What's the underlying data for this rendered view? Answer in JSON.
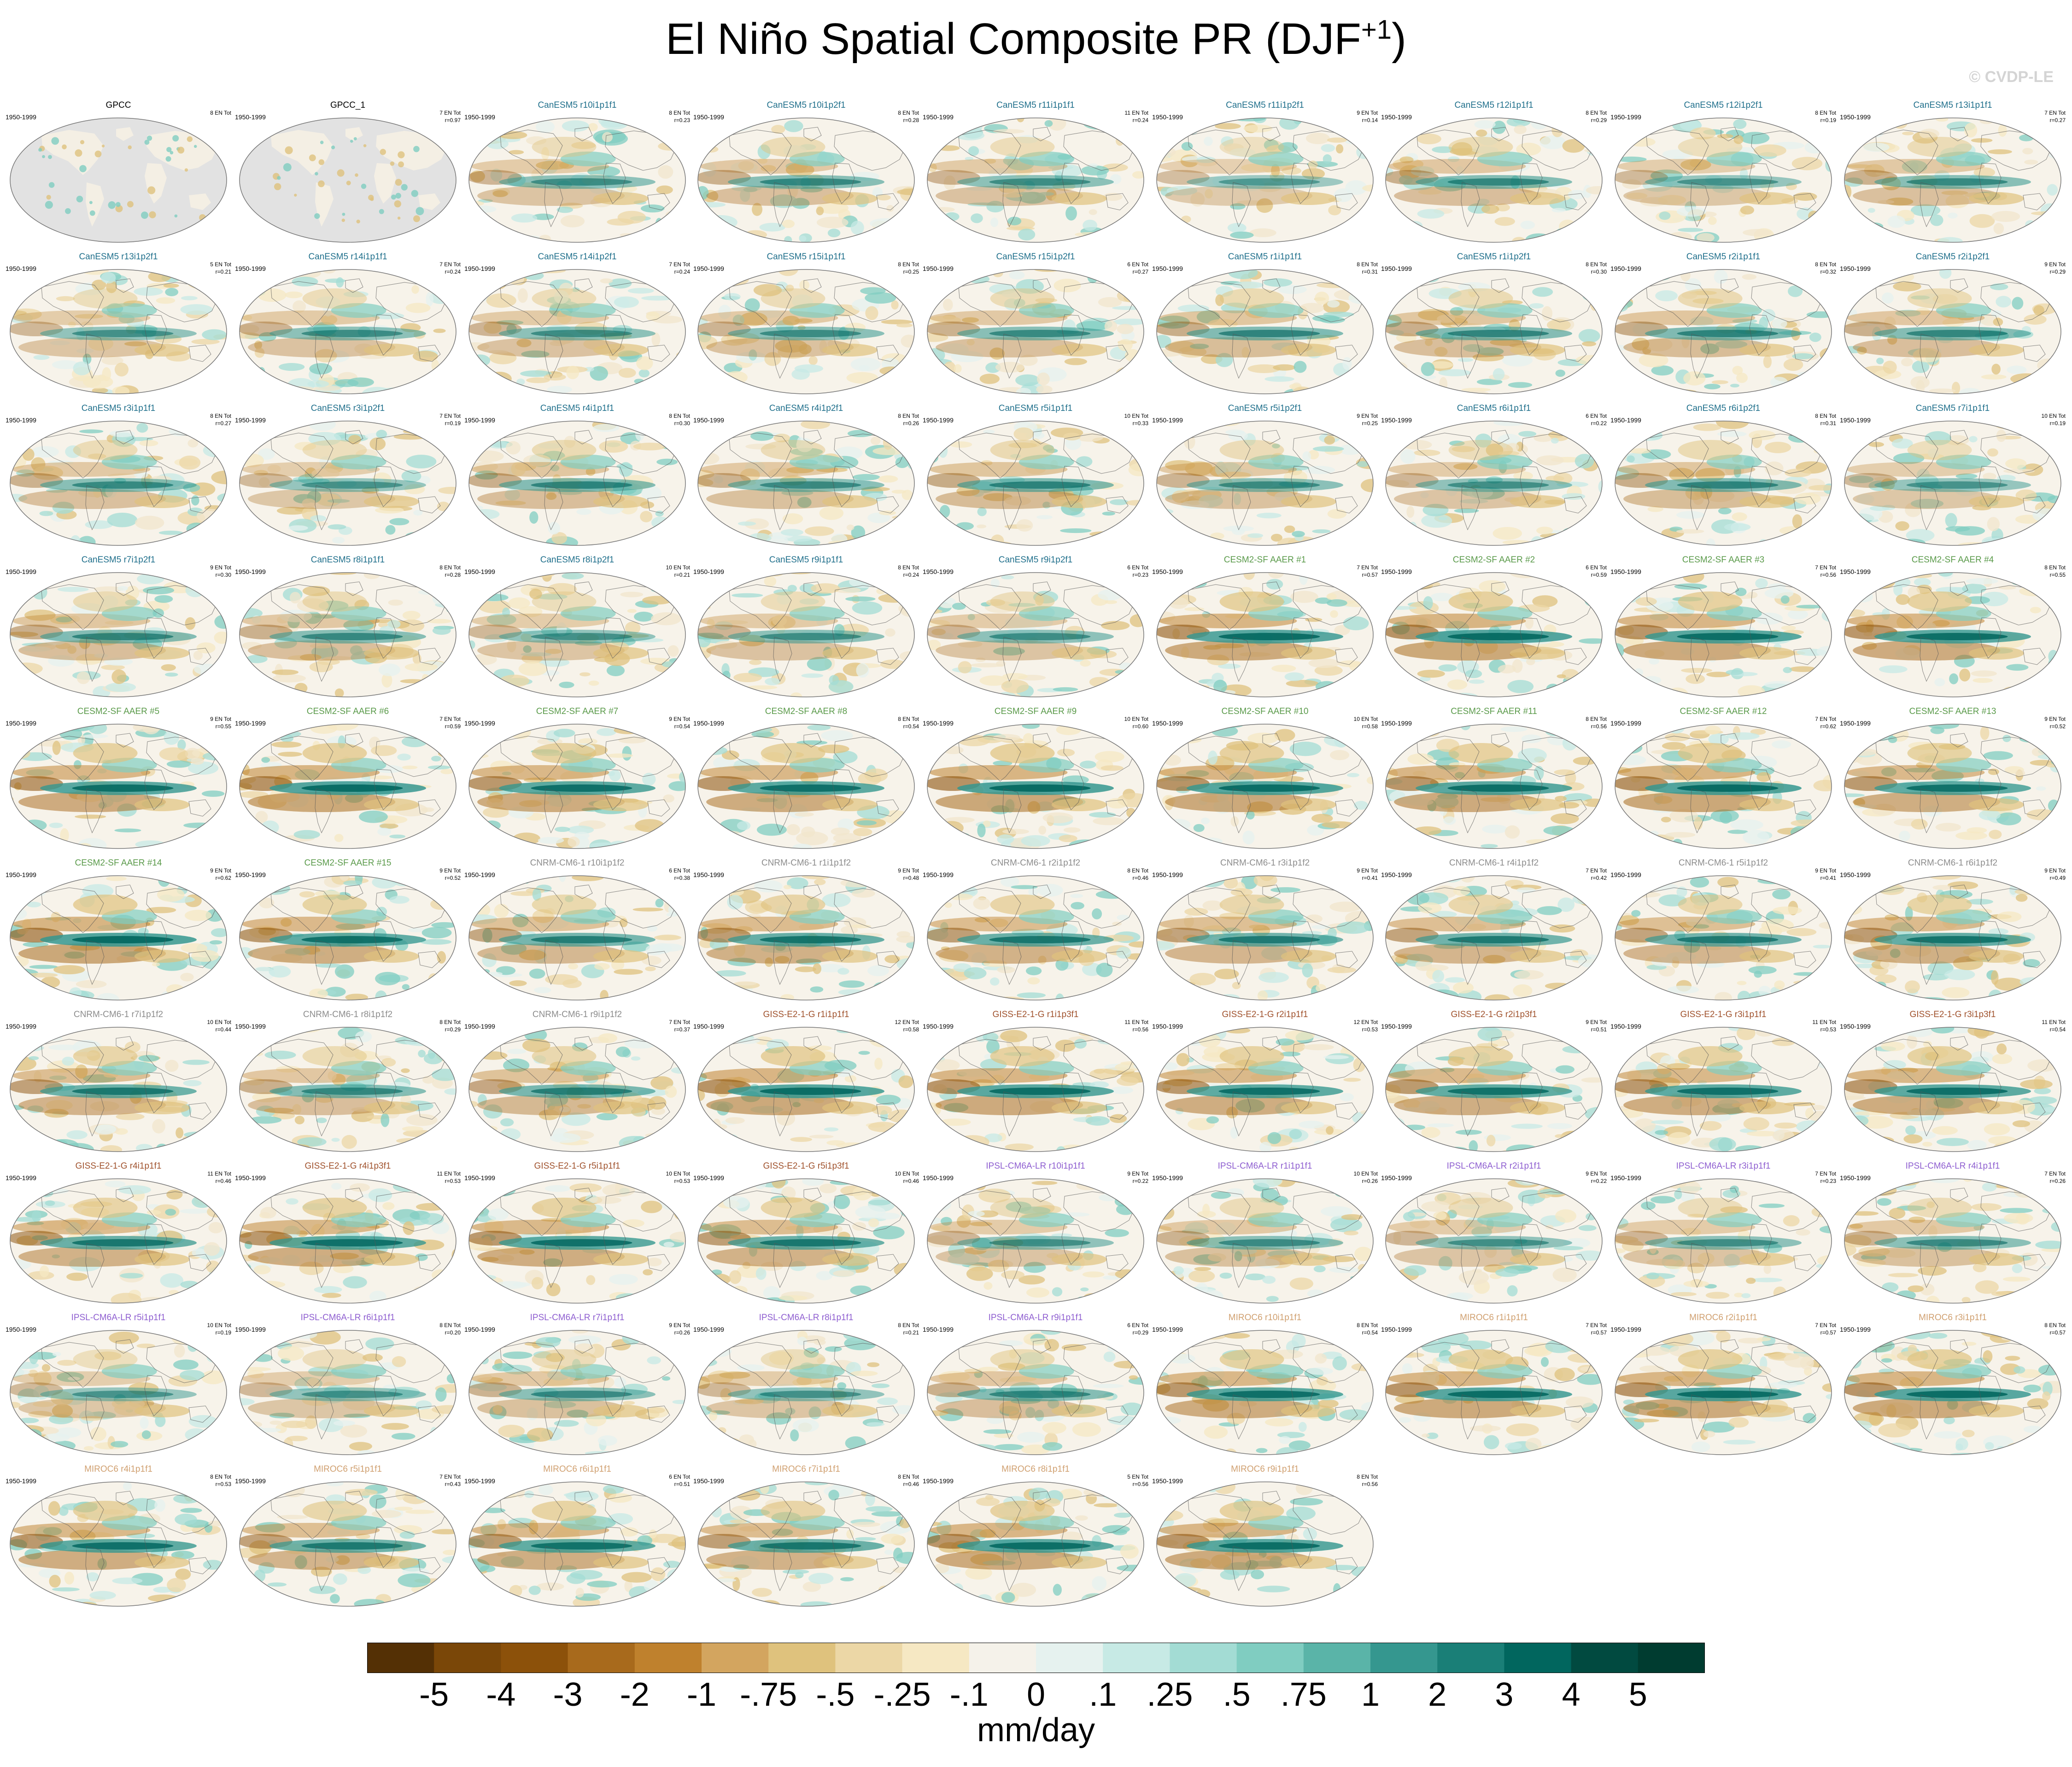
{
  "title": "El Niño Spatial Composite PR (DJF",
  "title_sup": "+1",
  "title_close": ")",
  "credit": "© CVDP-LE",
  "chart_data": {
    "type": "heatmap",
    "variable": "PR",
    "season": "DJF+1",
    "period": "1950-1999",
    "units": "mm/day",
    "colorbar": {
      "labels": [
        "-5",
        "-4",
        "-3",
        "-2",
        "-1",
        "-.75",
        "-.5",
        "-.25",
        "-.1",
        "0",
        ".1",
        ".25",
        ".5",
        ".75",
        "1",
        "2",
        "3",
        "4",
        "5"
      ],
      "colors": [
        "#543005",
        "#7a4708",
        "#8c510a",
        "#a86a1c",
        "#bf812d",
        "#d3a55f",
        "#dfc27d",
        "#ecd7a6",
        "#f6e8c3",
        "#f5f2ea",
        "#e6f2ef",
        "#c7eae5",
        "#a3dcd4",
        "#80cdc1",
        "#5ab4a8",
        "#35978f",
        "#1a7f77",
        "#01665e",
        "#014a40",
        "#003c30"
      ]
    },
    "panels": [
      {
        "name": "GPCC",
        "period": "1950-1999",
        "count": "8 EN Tot",
        "r": "",
        "group": "obs"
      },
      {
        "name": "GPCC_1",
        "period": "1950-1999",
        "count": "7 EN Tot",
        "r": "r=0.97",
        "group": "obs"
      },
      {
        "name": "CanESM5 r10i1p1f1",
        "period": "1950-1999",
        "count": "8 EN Tot",
        "r": "r=0.23",
        "group": "canesm"
      },
      {
        "name": "CanESM5 r10i1p2f1",
        "period": "1950-1999",
        "count": "8 EN Tot",
        "r": "r=0.28",
        "group": "canesm"
      },
      {
        "name": "CanESM5 r11i1p1f1",
        "period": "1950-1999",
        "count": "11 EN Tot",
        "r": "r=0.24",
        "group": "canesm"
      },
      {
        "name": "CanESM5 r11i1p2f1",
        "period": "1950-1999",
        "count": "9 EN Tot",
        "r": "r=0.14",
        "group": "canesm"
      },
      {
        "name": "CanESM5 r12i1p1f1",
        "period": "1950-1999",
        "count": "8 EN Tot",
        "r": "r=0.29",
        "group": "canesm"
      },
      {
        "name": "CanESM5 r12i1p2f1",
        "period": "1950-1999",
        "count": "8 EN Tot",
        "r": "r=0.19",
        "group": "canesm"
      },
      {
        "name": "CanESM5 r13i1p1f1",
        "period": "1950-1999",
        "count": "7 EN Tot",
        "r": "r=0.27",
        "group": "canesm"
      },
      {
        "name": "CanESM5 r13i1p2f1",
        "period": "1950-1999",
        "count": "5 EN Tot",
        "r": "r=0.21",
        "group": "canesm"
      },
      {
        "name": "CanESM5 r14i1p1f1",
        "period": "1950-1999",
        "count": "7 EN Tot",
        "r": "r=0.24",
        "group": "canesm"
      },
      {
        "name": "CanESM5 r14i1p2f1",
        "period": "1950-1999",
        "count": "7 EN Tot",
        "r": "r=0.24",
        "group": "canesm"
      },
      {
        "name": "CanESM5 r15i1p1f1",
        "period": "1950-1999",
        "count": "8 EN Tot",
        "r": "r=0.25",
        "group": "canesm"
      },
      {
        "name": "CanESM5 r15i1p2f1",
        "period": "1950-1999",
        "count": "6 EN Tot",
        "r": "r=0.27",
        "group": "canesm"
      },
      {
        "name": "CanESM5 r1i1p1f1",
        "period": "1950-1999",
        "count": "8 EN Tot",
        "r": "r=0.31",
        "group": "canesm"
      },
      {
        "name": "CanESM5 r1i1p2f1",
        "period": "1950-1999",
        "count": "8 EN Tot",
        "r": "r=0.30",
        "group": "canesm"
      },
      {
        "name": "CanESM5 r2i1p1f1",
        "period": "1950-1999",
        "count": "8 EN Tot",
        "r": "r=0.32",
        "group": "canesm"
      },
      {
        "name": "CanESM5 r2i1p2f1",
        "period": "1950-1999",
        "count": "9 EN Tot",
        "r": "r=0.29",
        "group": "canesm"
      },
      {
        "name": "CanESM5 r3i1p1f1",
        "period": "1950-1999",
        "count": "8 EN Tot",
        "r": "r=0.27",
        "group": "canesm"
      },
      {
        "name": "CanESM5 r3i1p2f1",
        "period": "1950-1999",
        "count": "7 EN Tot",
        "r": "r=0.19",
        "group": "canesm"
      },
      {
        "name": "CanESM5 r4i1p1f1",
        "period": "1950-1999",
        "count": "8 EN Tot",
        "r": "r=0.30",
        "group": "canesm"
      },
      {
        "name": "CanESM5 r4i1p2f1",
        "period": "1950-1999",
        "count": "8 EN Tot",
        "r": "r=0.26",
        "group": "canesm"
      },
      {
        "name": "CanESM5 r5i1p1f1",
        "period": "1950-1999",
        "count": "10 EN Tot",
        "r": "r=0.33",
        "group": "canesm"
      },
      {
        "name": "CanESM5 r5i1p2f1",
        "period": "1950-1999",
        "count": "9 EN Tot",
        "r": "r=0.25",
        "group": "canesm"
      },
      {
        "name": "CanESM5 r6i1p1f1",
        "period": "1950-1999",
        "count": "6 EN Tot",
        "r": "r=0.22",
        "group": "canesm"
      },
      {
        "name": "CanESM5 r6i1p2f1",
        "period": "1950-1999",
        "count": "8 EN Tot",
        "r": "r=0.31",
        "group": "canesm"
      },
      {
        "name": "CanESM5 r7i1p1f1",
        "period": "1950-1999",
        "count": "10 EN Tot",
        "r": "r=0.19",
        "group": "canesm"
      },
      {
        "name": "CanESM5 r7i1p2f1",
        "period": "1950-1999",
        "count": "9 EN Tot",
        "r": "r=0.30",
        "group": "canesm"
      },
      {
        "name": "CanESM5 r8i1p1f1",
        "period": "1950-1999",
        "count": "8 EN Tot",
        "r": "r=0.28",
        "group": "canesm"
      },
      {
        "name": "CanESM5 r8i1p2f1",
        "period": "1950-1999",
        "count": "10 EN Tot",
        "r": "r=0.21",
        "group": "canesm"
      },
      {
        "name": "CanESM5 r9i1p1f1",
        "period": "1950-1999",
        "count": "8 EN Tot",
        "r": "r=0.24",
        "group": "canesm"
      },
      {
        "name": "CanESM5 r9i1p2f1",
        "period": "1950-1999",
        "count": "6 EN Tot",
        "r": "r=0.23",
        "group": "canesm"
      },
      {
        "name": "CESM2-SF AAER #1",
        "period": "1950-1999",
        "count": "7 EN Tot",
        "r": "r=0.57",
        "group": "cesm"
      },
      {
        "name": "CESM2-SF AAER #2",
        "period": "1950-1999",
        "count": "6 EN Tot",
        "r": "r=0.59",
        "group": "cesm"
      },
      {
        "name": "CESM2-SF AAER #3",
        "period": "1950-1999",
        "count": "7 EN Tot",
        "r": "r=0.56",
        "group": "cesm"
      },
      {
        "name": "CESM2-SF AAER #4",
        "period": "1950-1999",
        "count": "8 EN Tot",
        "r": "r=0.55",
        "group": "cesm"
      },
      {
        "name": "CESM2-SF AAER #5",
        "period": "1950-1999",
        "count": "9 EN Tot",
        "r": "r=0.55",
        "group": "cesm"
      },
      {
        "name": "CESM2-SF AAER #6",
        "period": "1950-1999",
        "count": "7 EN Tot",
        "r": "r=0.59",
        "group": "cesm"
      },
      {
        "name": "CESM2-SF AAER #7",
        "period": "1950-1999",
        "count": "9 EN Tot",
        "r": "r=0.54",
        "group": "cesm"
      },
      {
        "name": "CESM2-SF AAER #8",
        "period": "1950-1999",
        "count": "8 EN Tot",
        "r": "r=0.54",
        "group": "cesm"
      },
      {
        "name": "CESM2-SF AAER #9",
        "period": "1950-1999",
        "count": "10 EN Tot",
        "r": "r=0.60",
        "group": "cesm"
      },
      {
        "name": "CESM2-SF AAER #10",
        "period": "1950-1999",
        "count": "10 EN Tot",
        "r": "r=0.58",
        "group": "cesm"
      },
      {
        "name": "CESM2-SF AAER #11",
        "period": "1950-1999",
        "count": "8 EN Tot",
        "r": "r=0.56",
        "group": "cesm"
      },
      {
        "name": "CESM2-SF AAER #12",
        "period": "1950-1999",
        "count": "7 EN Tot",
        "r": "r=0.62",
        "group": "cesm"
      },
      {
        "name": "CESM2-SF AAER #13",
        "period": "1950-1999",
        "count": "9 EN Tot",
        "r": "r=0.52",
        "group": "cesm"
      },
      {
        "name": "CESM2-SF AAER #14",
        "period": "1950-1999",
        "count": "9 EN Tot",
        "r": "r=0.62",
        "group": "cesm"
      },
      {
        "name": "CESM2-SF AAER #15",
        "period": "1950-1999",
        "count": "9 EN Tot",
        "r": "r=0.52",
        "group": "cesm"
      },
      {
        "name": "CNRM-CM6-1 r10i1p1f2",
        "period": "1950-1999",
        "count": "6 EN Tot",
        "r": "r=0.38",
        "group": "cnrm"
      },
      {
        "name": "CNRM-CM6-1 r1i1p1f2",
        "period": "1950-1999",
        "count": "9 EN Tot",
        "r": "r=0.48",
        "group": "cnrm"
      },
      {
        "name": "CNRM-CM6-1 r2i1p1f2",
        "period": "1950-1999",
        "count": "8 EN Tot",
        "r": "r=0.46",
        "group": "cnrm"
      },
      {
        "name": "CNRM-CM6-1 r3i1p1f2",
        "period": "1950-1999",
        "count": "9 EN Tot",
        "r": "r=0.41",
        "group": "cnrm"
      },
      {
        "name": "CNRM-CM6-1 r4i1p1f2",
        "period": "1950-1999",
        "count": "7 EN Tot",
        "r": "r=0.42",
        "group": "cnrm"
      },
      {
        "name": "CNRM-CM6-1 r5i1p1f2",
        "period": "1950-1999",
        "count": "9 EN Tot",
        "r": "r=0.41",
        "group": "cnrm"
      },
      {
        "name": "CNRM-CM6-1 r6i1p1f2",
        "period": "1950-1999",
        "count": "9 EN Tot",
        "r": "r=0.49",
        "group": "cnrm"
      },
      {
        "name": "CNRM-CM6-1 r7i1p1f2",
        "period": "1950-1999",
        "count": "10 EN Tot",
        "r": "r=0.44",
        "group": "cnrm"
      },
      {
        "name": "CNRM-CM6-1 r8i1p1f2",
        "period": "1950-1999",
        "count": "8 EN Tot",
        "r": "r=0.29",
        "group": "cnrm"
      },
      {
        "name": "CNRM-CM6-1 r9i1p1f2",
        "period": "1950-1999",
        "count": "7 EN Tot",
        "r": "r=0.37",
        "group": "cnrm"
      },
      {
        "name": "GISS-E2-1-G r1i1p1f1",
        "period": "1950-1999",
        "count": "12 EN Tot",
        "r": "r=0.58",
        "group": "giss"
      },
      {
        "name": "GISS-E2-1-G r1i1p3f1",
        "period": "1950-1999",
        "count": "11 EN Tot",
        "r": "r=0.56",
        "group": "giss"
      },
      {
        "name": "GISS-E2-1-G r2i1p1f1",
        "period": "1950-1999",
        "count": "12 EN Tot",
        "r": "r=0.53",
        "group": "giss"
      },
      {
        "name": "GISS-E2-1-G r2i1p3f1",
        "period": "1950-1999",
        "count": "9 EN Tot",
        "r": "r=0.51",
        "group": "giss"
      },
      {
        "name": "GISS-E2-1-G r3i1p1f1",
        "period": "1950-1999",
        "count": "11 EN Tot",
        "r": "r=0.53",
        "group": "giss"
      },
      {
        "name": "GISS-E2-1-G r3i1p3f1",
        "period": "1950-1999",
        "count": "11 EN Tot",
        "r": "r=0.54",
        "group": "giss"
      },
      {
        "name": "GISS-E2-1-G r4i1p1f1",
        "period": "1950-1999",
        "count": "11 EN Tot",
        "r": "r=0.46",
        "group": "giss"
      },
      {
        "name": "GISS-E2-1-G r4i1p3f1",
        "period": "1950-1999",
        "count": "11 EN Tot",
        "r": "r=0.53",
        "group": "giss"
      },
      {
        "name": "GISS-E2-1-G r5i1p1f1",
        "period": "1950-1999",
        "count": "10 EN Tot",
        "r": "r=0.53",
        "group": "giss"
      },
      {
        "name": "GISS-E2-1-G r5i1p3f1",
        "period": "1950-1999",
        "count": "10 EN Tot",
        "r": "r=0.46",
        "group": "giss"
      },
      {
        "name": "IPSL-CM6A-LR r10i1p1f1",
        "period": "1950-1999",
        "count": "9 EN Tot",
        "r": "r=0.22",
        "group": "ipsl"
      },
      {
        "name": "IPSL-CM6A-LR r1i1p1f1",
        "period": "1950-1999",
        "count": "10 EN Tot",
        "r": "r=0.26",
        "group": "ipsl"
      },
      {
        "name": "IPSL-CM6A-LR r2i1p1f1",
        "period": "1950-1999",
        "count": "9 EN Tot",
        "r": "r=0.22",
        "group": "ipsl"
      },
      {
        "name": "IPSL-CM6A-LR r3i1p1f1",
        "period": "1950-1999",
        "count": "7 EN Tot",
        "r": "r=0.23",
        "group": "ipsl"
      },
      {
        "name": "IPSL-CM6A-LR r4i1p1f1",
        "period": "1950-1999",
        "count": "7 EN Tot",
        "r": "r=0.26",
        "group": "ipsl"
      },
      {
        "name": "IPSL-CM6A-LR r5i1p1f1",
        "period": "1950-1999",
        "count": "10 EN Tot",
        "r": "r=0.19",
        "group": "ipsl"
      },
      {
        "name": "IPSL-CM6A-LR r6i1p1f1",
        "period": "1950-1999",
        "count": "8 EN Tot",
        "r": "r=0.20",
        "group": "ipsl"
      },
      {
        "name": "IPSL-CM6A-LR r7i1p1f1",
        "period": "1950-1999",
        "count": "9 EN Tot",
        "r": "r=0.26",
        "group": "ipsl"
      },
      {
        "name": "IPSL-CM6A-LR r8i1p1f1",
        "period": "1950-1999",
        "count": "8 EN Tot",
        "r": "r=0.21",
        "group": "ipsl"
      },
      {
        "name": "IPSL-CM6A-LR r9i1p1f1",
        "period": "1950-1999",
        "count": "6 EN Tot",
        "r": "r=0.29",
        "group": "ipsl"
      },
      {
        "name": "MIROC6 r10i1p1f1",
        "period": "1950-1999",
        "count": "8 EN Tot",
        "r": "r=0.54",
        "group": "miroc"
      },
      {
        "name": "MIROC6 r1i1p1f1",
        "period": "1950-1999",
        "count": "7 EN Tot",
        "r": "r=0.57",
        "group": "miroc"
      },
      {
        "name": "MIROC6 r2i1p1f1",
        "period": "1950-1999",
        "count": "7 EN Tot",
        "r": "r=0.57",
        "group": "miroc"
      },
      {
        "name": "MIROC6 r3i1p1f1",
        "period": "1950-1999",
        "count": "8 EN Tot",
        "r": "r=0.57",
        "group": "miroc"
      },
      {
        "name": "MIROC6 r4i1p1f1",
        "period": "1950-1999",
        "count": "8 EN Tot",
        "r": "r=0.53",
        "group": "miroc"
      },
      {
        "name": "MIROC6 r5i1p1f1",
        "period": "1950-1999",
        "count": "7 EN Tot",
        "r": "r=0.43",
        "group": "miroc"
      },
      {
        "name": "MIROC6 r6i1p1f1",
        "period": "1950-1999",
        "count": "6 EN Tot",
        "r": "r=0.51",
        "group": "miroc"
      },
      {
        "name": "MIROC6 r7i1p1f1",
        "period": "1950-1999",
        "count": "8 EN Tot",
        "r": "r=0.46",
        "group": "miroc"
      },
      {
        "name": "MIROC6 r8i1p1f1",
        "period": "1950-1999",
        "count": "5 EN Tot",
        "r": "r=0.56",
        "group": "miroc"
      },
      {
        "name": "MIROC6 r9i1p1f1",
        "period": "1950-1999",
        "count": "8 EN Tot",
        "r": "r=0.56",
        "group": "miroc"
      }
    ],
    "group_colors": {
      "obs": "#000000",
      "canesm": "#1f6f8b",
      "cesm": "#5a9a4a",
      "cnrm": "#8c8c8c",
      "giss": "#a0522d",
      "ipsl": "#8e5ed0",
      "miroc": "#d0a070"
    }
  }
}
